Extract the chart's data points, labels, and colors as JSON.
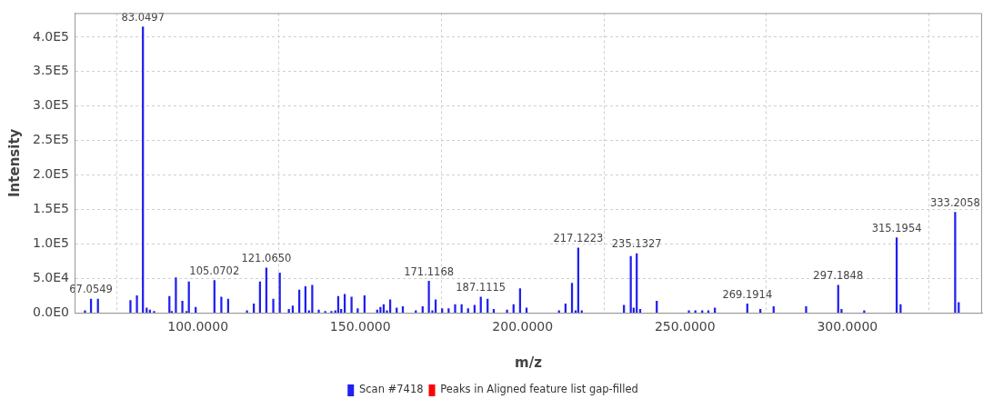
{
  "chart_data": {
    "type": "bar",
    "xlabel": "m/z",
    "ylabel": "Intensity",
    "xlim": [
      62,
      341.5
    ],
    "ylim": [
      0,
      435000
    ],
    "xticks": [
      {
        "value": 100,
        "label": "100.0000"
      },
      {
        "value": 150,
        "label": "150.0000"
      },
      {
        "value": 200,
        "label": "200.0000"
      },
      {
        "value": 250,
        "label": "250.0000"
      },
      {
        "value": 300,
        "label": "300.0000"
      }
    ],
    "yticks": [
      {
        "value": 0,
        "label": "0.0E0"
      },
      {
        "value": 50000,
        "label": "5.0E4"
      },
      {
        "value": 100000,
        "label": "1.0E5"
      },
      {
        "value": 150000,
        "label": "1.5E5"
      },
      {
        "value": 200000,
        "label": "2.0E5"
      },
      {
        "value": 250000,
        "label": "2.5E5"
      },
      {
        "value": 300000,
        "label": "3.0E5"
      },
      {
        "value": 350000,
        "label": "3.5E5"
      },
      {
        "value": 400000,
        "label": "4.0E5"
      }
    ],
    "grid": true,
    "legend": "bottom",
    "series": [
      {
        "name": "Scan #7418",
        "color": "#2020f0",
        "x": [
          65.2,
          67.0549,
          69.2,
          79.2,
          81.2,
          83.0497,
          84.2,
          85.2,
          86.5,
          91.2,
          91.9,
          93.2,
          95.2,
          96.5,
          97.2,
          99.3,
          105.0702,
          107.2,
          109.3,
          115.1,
          117.2,
          119.1,
          121.065,
          123.2,
          125.2,
          128.0,
          129.2,
          131.2,
          133.1,
          134.2,
          135.2,
          137.2,
          139.2,
          141.1,
          142.3,
          143.2,
          144.1,
          145.2,
          147.3,
          149.2,
          151.3,
          155.2,
          156.2,
          157.2,
          158.2,
          159.2,
          161.2,
          163.1,
          167.1,
          169.2,
          171.1168,
          172.2,
          173.2,
          175.2,
          177.2,
          179.2,
          181.2,
          183.2,
          185.2,
          187.1115,
          189.2,
          191.1,
          195.2,
          197.2,
          199.2,
          201.2,
          211.2,
          213.2,
          215.2,
          216.3,
          217.1223,
          218.2,
          231.2,
          233.3,
          234.2,
          235.1327,
          236.2,
          241.3,
          251.2,
          253.2,
          255.3,
          257.2,
          259.2,
          269.1914,
          273.2,
          277.3,
          287.3,
          297.1848,
          298.2,
          305.2,
          315.1954,
          316.4,
          333.2058,
          334.3
        ],
        "values": [
          3000,
          20000,
          20000,
          18000,
          25000,
          415000,
          7000,
          4000,
          2000,
          24000,
          2000,
          51000,
          17000,
          2000,
          45000,
          8000,
          47000,
          23000,
          20000,
          3000,
          13000,
          45000,
          65000,
          20000,
          58000,
          5000,
          10000,
          33000,
          38000,
          3000,
          40000,
          4000,
          2000,
          2000,
          3000,
          24000,
          5000,
          27000,
          23000,
          6000,
          25000,
          4000,
          8000,
          12000,
          3000,
          19000,
          7000,
          9000,
          3000,
          9000,
          46000,
          3000,
          19000,
          6000,
          6000,
          12000,
          12000,
          6000,
          11000,
          23000,
          20000,
          5000,
          4000,
          12000,
          35000,
          7000,
          3000,
          13000,
          43000,
          3000,
          94000,
          3000,
          11000,
          82000,
          7000,
          86000,
          5000,
          17000,
          3000,
          3000,
          3000,
          3000,
          7000,
          13000,
          5000,
          9000,
          9000,
          40000,
          5000,
          3000,
          109000,
          12000,
          146000,
          15000
        ]
      },
      {
        "name": "Peaks in Aligned feature list gap-filled",
        "color": "#ff0000"
      }
    ],
    "annotations": [
      {
        "text": "67.0549",
        "x": 67.0549,
        "y": 20000
      },
      {
        "text": "83.0497",
        "x": 83.0497,
        "y": 415000
      },
      {
        "text": "105.0702",
        "x": 105.0702,
        "y": 47000
      },
      {
        "text": "121.0650",
        "x": 121.065,
        "y": 65000
      },
      {
        "text": "171.1168",
        "x": 171.1168,
        "y": 46000
      },
      {
        "text": "187.1115",
        "x": 187.1115,
        "y": 23000
      },
      {
        "text": "217.1223",
        "x": 217.1223,
        "y": 94000
      },
      {
        "text": "235.1327",
        "x": 235.1327,
        "y": 86000
      },
      {
        "text": "269.1914",
        "x": 269.1914,
        "y": 13000
      },
      {
        "text": "297.1848",
        "x": 297.1848,
        "y": 40000
      },
      {
        "text": "315.1954",
        "x": 315.1954,
        "y": 109000
      },
      {
        "text": "333.2058",
        "x": 333.2058,
        "y": 146000
      }
    ]
  }
}
